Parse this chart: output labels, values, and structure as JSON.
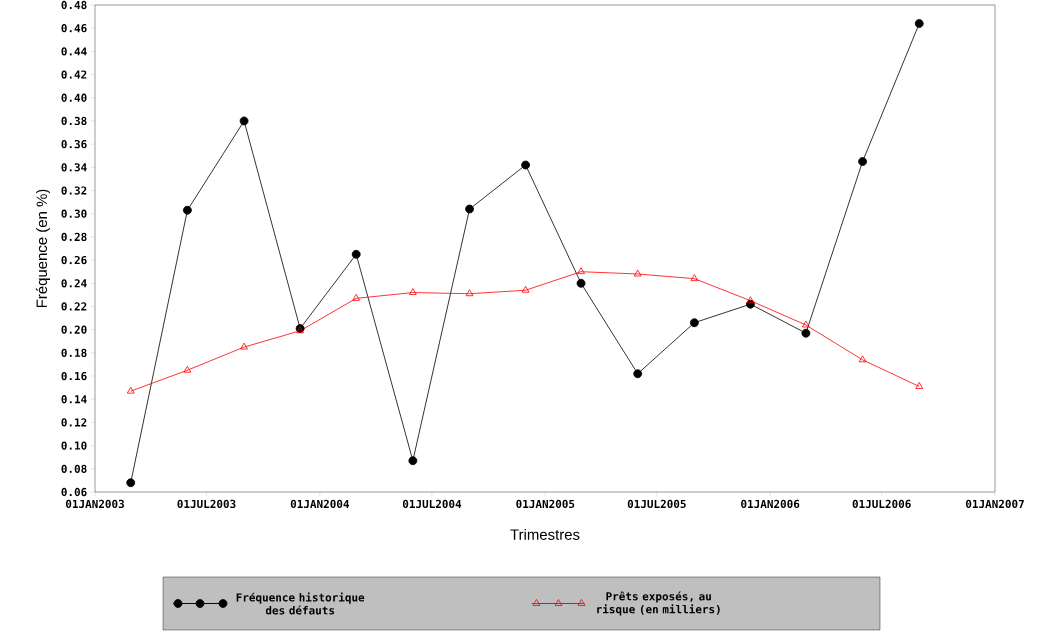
{
  "chart_data": {
    "type": "line",
    "xlabel": "Trimestres",
    "ylabel": "Fréquence (en %)",
    "x": [
      "2003-02-28",
      "2003-05-31",
      "2003-08-31",
      "2003-11-30",
      "2004-02-29",
      "2004-05-31",
      "2004-08-31",
      "2004-11-30",
      "2005-02-28",
      "2005-05-31",
      "2005-08-31",
      "2005-11-30",
      "2006-02-28",
      "2006-05-31",
      "2006-08-31"
    ],
    "series": [
      {
        "name": "Fréquence historique des défauts",
        "color": "#000000",
        "marker": "circle",
        "values": [
          0.068,
          0.303,
          0.38,
          0.201,
          0.265,
          0.087,
          0.304,
          0.342,
          0.24,
          0.162,
          0.206,
          0.222,
          0.197,
          0.345,
          0.464
        ]
      },
      {
        "name": "Prêts exposés, au risque (en milliers)",
        "color": "#ff0000",
        "marker": "triangle",
        "values": [
          0.147,
          0.165,
          0.185,
          0.199,
          0.227,
          0.232,
          0.231,
          0.234,
          0.25,
          0.248,
          0.244,
          0.225,
          0.204,
          0.174,
          0.151
        ]
      }
    ],
    "xlim": [
      "2003-01-01",
      "2007-01-01"
    ],
    "xticks": [
      {
        "value": "2003-01-01",
        "label": "01JAN2003"
      },
      {
        "value": "2003-07-01",
        "label": "01JUL2003"
      },
      {
        "value": "2004-01-01",
        "label": "01JAN2004"
      },
      {
        "value": "2004-07-01",
        "label": "01JUL2004"
      },
      {
        "value": "2005-01-01",
        "label": "01JAN2005"
      },
      {
        "value": "2005-07-01",
        "label": "01JUL2005"
      },
      {
        "value": "2006-01-01",
        "label": "01JAN2006"
      },
      {
        "value": "2006-07-01",
        "label": "01JUL2006"
      },
      {
        "value": "2007-01-01",
        "label": "01JAN2007"
      }
    ],
    "ylim": [
      0.06,
      0.48
    ],
    "yticks": [
      {
        "value": 0.06,
        "label": "0.06"
      },
      {
        "value": 0.08,
        "label": "0.08"
      },
      {
        "value": 0.1,
        "label": "0.10"
      },
      {
        "value": 0.12,
        "label": "0.12"
      },
      {
        "value": 0.14,
        "label": "0.14"
      },
      {
        "value": 0.16,
        "label": "0.16"
      },
      {
        "value": 0.18,
        "label": "0.18"
      },
      {
        "value": 0.2,
        "label": "0.20"
      },
      {
        "value": 0.22,
        "label": "0.22"
      },
      {
        "value": 0.24,
        "label": "0.24"
      },
      {
        "value": 0.26,
        "label": "0.26"
      },
      {
        "value": 0.28,
        "label": "0.28"
      },
      {
        "value": 0.3,
        "label": "0.30"
      },
      {
        "value": 0.32,
        "label": "0.32"
      },
      {
        "value": 0.34,
        "label": "0.34"
      },
      {
        "value": 0.36,
        "label": "0.36"
      },
      {
        "value": 0.38,
        "label": "0.38"
      },
      {
        "value": 0.4,
        "label": "0.40"
      },
      {
        "value": 0.42,
        "label": "0.42"
      },
      {
        "value": 0.44,
        "label": "0.44"
      },
      {
        "value": 0.46,
        "label": "0.46"
      },
      {
        "value": 0.48,
        "label": "0.48"
      }
    ],
    "legend": "bottom",
    "grid": false,
    "line_style": "solid"
  }
}
